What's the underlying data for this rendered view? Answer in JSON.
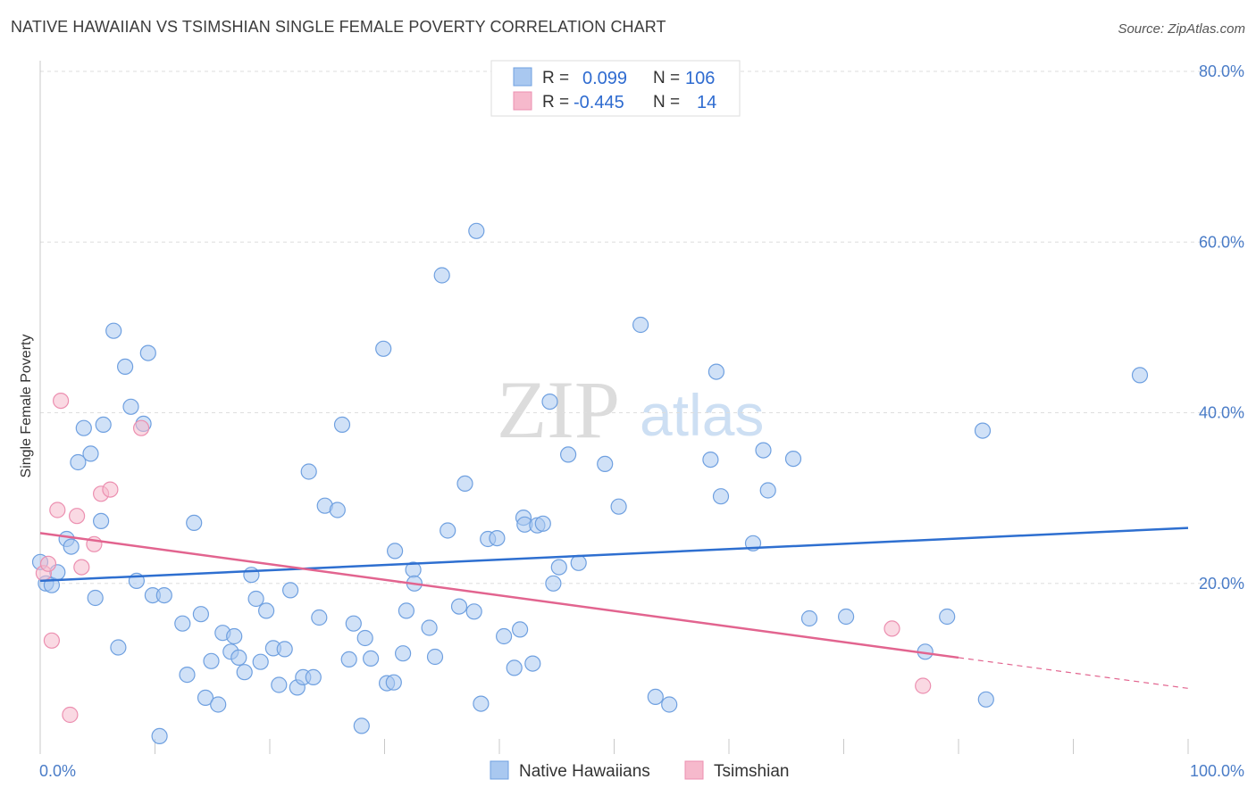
{
  "title": "NATIVE HAWAIIAN VS TSIMSHIAN SINGLE FEMALE POVERTY CORRELATION CHART",
  "source": "Source: ZipAtlas.com",
  "watermark": {
    "zip": "ZIP",
    "atlas": "atlas"
  },
  "chart_data": {
    "type": "scatter",
    "ylabel": "Single Female Poverty",
    "xlim": [
      0,
      100
    ],
    "ylim": [
      0,
      85
    ],
    "x_tick_labels": [
      {
        "value": 0,
        "label": "0.0%"
      },
      {
        "value": 100,
        "label": "100.0%"
      }
    ],
    "y_tick_labels": [
      {
        "value": 20,
        "label": "20.0%"
      },
      {
        "value": 40,
        "label": "40.0%"
      },
      {
        "value": 60,
        "label": "60.0%"
      },
      {
        "value": 80,
        "label": "80.0%"
      }
    ],
    "grid": true,
    "legend_top": [
      {
        "r_label": "R =",
        "r_value": "0.099",
        "n_label": "N =",
        "n_value": "106",
        "color": "#a9c8f0",
        "stroke": "#6fa0e0"
      },
      {
        "r_label": "R =",
        "r_value": "-0.445",
        "n_label": "N =",
        "n_value": "14",
        "color": "#f6b9cc",
        "stroke": "#ec8fb0"
      }
    ],
    "series": [
      {
        "name": "Native Hawaiians",
        "color": "#a9c8f0",
        "stroke": "#6fa0e0",
        "line_color": "#2e6fd0",
        "trend": {
          "x0": 0,
          "y0": 20.3,
          "x1": 100,
          "y1": 26.5
        },
        "points": [
          [
            0.0,
            22.5
          ],
          [
            0.5,
            20.0
          ],
          [
            1.0,
            19.8
          ],
          [
            1.5,
            21.3
          ],
          [
            2.3,
            25.2
          ],
          [
            2.7,
            24.3
          ],
          [
            3.3,
            34.2
          ],
          [
            3.8,
            38.2
          ],
          [
            4.4,
            35.2
          ],
          [
            4.8,
            18.3
          ],
          [
            5.3,
            27.3
          ],
          [
            5.5,
            38.6
          ],
          [
            6.4,
            49.6
          ],
          [
            6.8,
            12.5
          ],
          [
            7.4,
            45.4
          ],
          [
            7.9,
            40.7
          ],
          [
            8.4,
            20.3
          ],
          [
            9.0,
            38.7
          ],
          [
            9.4,
            47.0
          ],
          [
            9.8,
            18.6
          ],
          [
            10.4,
            2.1
          ],
          [
            10.8,
            18.6
          ],
          [
            12.4,
            15.3
          ],
          [
            12.8,
            9.3
          ],
          [
            13.4,
            27.1
          ],
          [
            14.0,
            16.4
          ],
          [
            14.4,
            6.6
          ],
          [
            14.9,
            10.9
          ],
          [
            15.5,
            5.8
          ],
          [
            15.9,
            14.2
          ],
          [
            16.6,
            12.0
          ],
          [
            16.9,
            13.8
          ],
          [
            17.3,
            11.3
          ],
          [
            17.8,
            9.6
          ],
          [
            18.4,
            21.0
          ],
          [
            18.8,
            18.2
          ],
          [
            19.2,
            10.8
          ],
          [
            19.7,
            16.8
          ],
          [
            20.3,
            12.4
          ],
          [
            20.8,
            8.1
          ],
          [
            21.3,
            12.3
          ],
          [
            21.8,
            19.2
          ],
          [
            22.4,
            7.8
          ],
          [
            22.9,
            9.0
          ],
          [
            23.4,
            33.1
          ],
          [
            23.8,
            9.0
          ],
          [
            24.3,
            16.0
          ],
          [
            24.8,
            29.1
          ],
          [
            25.9,
            28.6
          ],
          [
            26.3,
            38.6
          ],
          [
            26.9,
            11.1
          ],
          [
            27.3,
            15.3
          ],
          [
            28.0,
            3.3
          ],
          [
            28.3,
            13.6
          ],
          [
            28.8,
            11.2
          ],
          [
            29.9,
            47.5
          ],
          [
            30.2,
            8.3
          ],
          [
            30.8,
            8.4
          ],
          [
            30.9,
            23.8
          ],
          [
            31.6,
            11.8
          ],
          [
            31.9,
            16.8
          ],
          [
            32.5,
            21.6
          ],
          [
            32.6,
            20.0
          ],
          [
            33.9,
            14.8
          ],
          [
            34.4,
            11.4
          ],
          [
            35.0,
            56.1
          ],
          [
            35.5,
            26.2
          ],
          [
            36.5,
            17.3
          ],
          [
            37.0,
            31.7
          ],
          [
            37.8,
            16.7
          ],
          [
            38.0,
            61.3
          ],
          [
            38.4,
            5.9
          ],
          [
            39.0,
            25.2
          ],
          [
            39.8,
            25.3
          ],
          [
            40.4,
            13.8
          ],
          [
            41.3,
            10.1
          ],
          [
            41.8,
            14.6
          ],
          [
            42.1,
            27.7
          ],
          [
            42.2,
            26.9
          ],
          [
            42.9,
            10.6
          ],
          [
            43.3,
            26.8
          ],
          [
            43.8,
            27.0
          ],
          [
            44.4,
            41.3
          ],
          [
            44.7,
            20.0
          ],
          [
            45.2,
            21.9
          ],
          [
            46.0,
            35.1
          ],
          [
            46.9,
            22.4
          ],
          [
            49.2,
            34.0
          ],
          [
            50.4,
            29.0
          ],
          [
            52.3,
            50.3
          ],
          [
            53.6,
            6.7
          ],
          [
            54.8,
            5.8
          ],
          [
            58.4,
            34.5
          ],
          [
            58.9,
            44.8
          ],
          [
            59.3,
            30.2
          ],
          [
            62.1,
            24.7
          ],
          [
            63.0,
            35.6
          ],
          [
            63.4,
            30.9
          ],
          [
            65.6,
            34.6
          ],
          [
            67.0,
            15.9
          ],
          [
            70.2,
            16.1
          ],
          [
            77.1,
            12.0
          ],
          [
            79.0,
            16.1
          ],
          [
            82.1,
            37.9
          ],
          [
            82.4,
            6.4
          ],
          [
            95.8,
            44.4
          ]
        ]
      },
      {
        "name": "Tsimshian",
        "color": "#f6b9cc",
        "stroke": "#ec8fb0",
        "line_color": "#e2648f",
        "trend": {
          "x0": 0,
          "y0": 25.9,
          "x1": 80,
          "y1": 11.3
        },
        "trend_dashed": {
          "x0": 80,
          "y0": 11.3,
          "x1": 100,
          "y1": 7.7
        },
        "points": [
          [
            0.3,
            21.2
          ],
          [
            0.7,
            22.3
          ],
          [
            1.0,
            13.3
          ],
          [
            1.5,
            28.6
          ],
          [
            1.8,
            41.4
          ],
          [
            2.6,
            4.6
          ],
          [
            3.2,
            27.9
          ],
          [
            3.6,
            21.9
          ],
          [
            4.7,
            24.6
          ],
          [
            5.3,
            30.5
          ],
          [
            6.1,
            31.0
          ],
          [
            8.8,
            38.2
          ],
          [
            74.2,
            14.7
          ],
          [
            76.9,
            8.0
          ]
        ]
      }
    ]
  },
  "bottom_legend": [
    {
      "label": "Native Hawaiians",
      "color": "#a9c8f0",
      "stroke": "#6fa0e0"
    },
    {
      "label": "Tsimshian",
      "color": "#f6b9cc",
      "stroke": "#ec8fb0"
    }
  ]
}
